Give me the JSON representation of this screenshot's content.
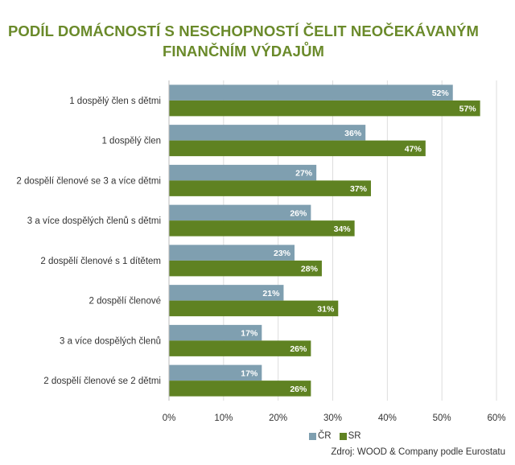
{
  "colors": {
    "title": "#6a8a2a",
    "cr": "#7f9fb0",
    "sr": "#5f8222",
    "grid": "#dddddd"
  },
  "title_line1": "PODÍL DOMÁCNOSTÍ S NESCHOPNOSTÍ ČELIT NEOČEKÁVANÝM",
  "title_line2": "FINANČNÍM VÝDAJŮM",
  "source": "Zdroj: WOOD & Company podle Eurostatu",
  "chart_data": {
    "type": "bar",
    "orientation": "horizontal",
    "categories": [
      "1 dospělý člen s dětmi",
      "1 dospělý člen",
      "2 dospělí členové se 3 a více dětmi",
      "3 a více dospělých členů s dětmi",
      "2 dospělí členové s 1 dítětem",
      "2 dospělí členové",
      "3 a více dospělých členů",
      "2 dospělí členové se 2 dětmi"
    ],
    "series": [
      {
        "name": "ČR",
        "values": [
          52,
          36,
          27,
          26,
          23,
          21,
          17,
          17
        ]
      },
      {
        "name": "SR",
        "values": [
          57,
          47,
          37,
          34,
          28,
          31,
          26,
          26
        ]
      }
    ],
    "value_labels": {
      "ČR": [
        "52%",
        "36%",
        "27%",
        "26%",
        "23%",
        "21%",
        "17%",
        "17%"
      ],
      "SR": [
        "57%",
        "47%",
        "37%",
        "34%",
        "28%",
        "31%",
        "26%",
        "26%"
      ]
    },
    "xlim": [
      0,
      60
    ],
    "xticks": [
      "0%",
      "10%",
      "20%",
      "30%",
      "40%",
      "50%",
      "60%"
    ],
    "grid": true,
    "legend": "bottom-right"
  }
}
